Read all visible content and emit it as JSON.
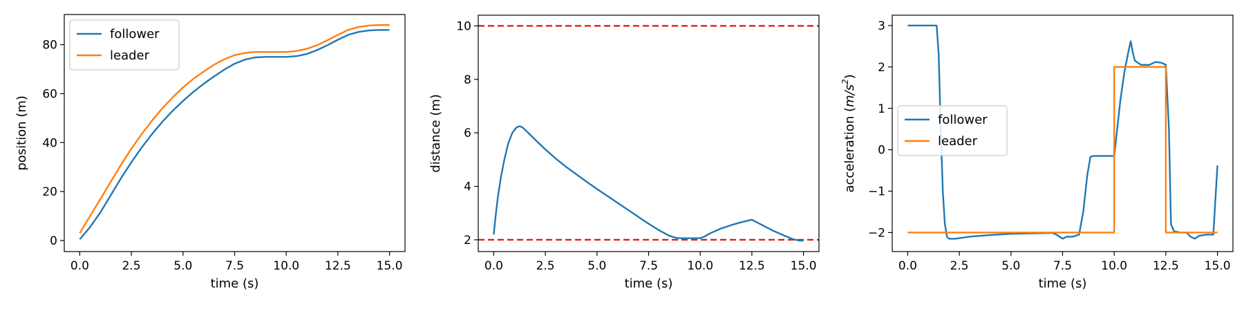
{
  "colors": {
    "follower": "#1f77b4",
    "leader": "#ff7f0e",
    "limit": "#e41a1c"
  },
  "chart_data": [
    {
      "type": "line",
      "xlabel": "time (s)",
      "ylabel": "position (m)",
      "xlim": [
        -0.75,
        15.75
      ],
      "ylim": [
        -4.5,
        92.3
      ],
      "xticks": [
        0,
        2.5,
        5,
        7.5,
        10,
        12.5,
        15
      ],
      "xtick_labels": [
        "0.0",
        "2.5",
        "5.0",
        "7.5",
        "10.0",
        "12.5",
        "15.0"
      ],
      "yticks": [
        0,
        20,
        40,
        60,
        80
      ],
      "ytick_labels": [
        "0",
        "20",
        "40",
        "60",
        "80"
      ],
      "legend": {
        "position": "upper-left"
      },
      "series": [
        {
          "name": "follower",
          "color": "#1f77b4",
          "x": [
            0,
            0.5,
            1,
            1.5,
            2,
            2.5,
            3,
            3.5,
            4,
            4.5,
            5,
            5.5,
            6,
            6.5,
            7,
            7.5,
            8,
            8.5,
            9,
            9.5,
            10,
            10.5,
            11,
            11.5,
            12,
            12.5,
            13,
            13.5,
            14,
            14.5,
            15
          ],
          "y": [
            0.5,
            5.5,
            11.5,
            18.5,
            25.5,
            32,
            38,
            43.5,
            48.5,
            53,
            57,
            60.7,
            64,
            67,
            69.8,
            72.2,
            73.9,
            74.8,
            75,
            75,
            75,
            75.3,
            76.2,
            77.8,
            79.8,
            82,
            84,
            85.2,
            85.8,
            86,
            86
          ]
        },
        {
          "name": "leader",
          "color": "#ff7f0e",
          "x": [
            0,
            0.5,
            1,
            1.5,
            2,
            2.5,
            3,
            3.5,
            4,
            4.5,
            5,
            5.5,
            6,
            6.5,
            7,
            7.5,
            8,
            8.5,
            9,
            9.5,
            10,
            10.5,
            11,
            11.5,
            12,
            12.5,
            13,
            13.5,
            14,
            14.5,
            15
          ],
          "y": [
            3,
            10,
            17,
            24,
            31,
            37.5,
            43.5,
            49,
            54,
            58.5,
            62.5,
            66,
            69,
            71.8,
            74,
            75.7,
            76.6,
            77,
            77,
            77,
            77,
            77.4,
            78.3,
            79.8,
            81.8,
            84,
            86,
            87.2,
            87.8,
            88,
            88
          ]
        }
      ]
    },
    {
      "type": "line",
      "xlabel": "time (s)",
      "ylabel": "distance (m)",
      "xlim": [
        -0.75,
        15.75
      ],
      "ylim": [
        1.56,
        10.4
      ],
      "xticks": [
        0,
        2.5,
        5,
        7.5,
        10,
        12.5,
        15
      ],
      "xtick_labels": [
        "0.0",
        "2.5",
        "5.0",
        "7.5",
        "10.0",
        "12.5",
        "15.0"
      ],
      "yticks": [
        2,
        4,
        6,
        8,
        10
      ],
      "ytick_labels": [
        "2",
        "4",
        "6",
        "8",
        "10"
      ],
      "hlines": [
        {
          "y": 10,
          "color": "#e41a1c",
          "style": "dashed"
        },
        {
          "y": 2,
          "color": "#e41a1c",
          "style": "dashed"
        }
      ],
      "series": [
        {
          "color": "#1f77b4",
          "x": [
            0,
            0.1,
            0.2,
            0.35,
            0.5,
            0.7,
            0.9,
            1.1,
            1.25,
            1.4,
            1.6,
            2,
            2.5,
            3,
            3.5,
            4,
            4.5,
            5,
            5.5,
            6,
            6.5,
            7,
            7.5,
            8,
            8.5,
            8.8,
            9,
            9.5,
            10,
            10.2,
            10.5,
            11,
            11.5,
            12,
            12.5,
            13,
            13.5,
            14,
            14.5,
            14.8,
            15
          ],
          "y": [
            2.2,
            2.95,
            3.6,
            4.35,
            4.95,
            5.6,
            6,
            6.2,
            6.25,
            6.2,
            6.05,
            5.75,
            5.38,
            5.04,
            4.73,
            4.45,
            4.17,
            3.9,
            3.64,
            3.38,
            3.12,
            2.86,
            2.6,
            2.36,
            2.15,
            2.08,
            2.06,
            2.06,
            2.06,
            2.12,
            2.25,
            2.42,
            2.55,
            2.66,
            2.75,
            2.55,
            2.35,
            2.18,
            2.02,
            1.97,
            1.97
          ]
        }
      ]
    },
    {
      "type": "line",
      "xlabel": "time (s)",
      "ylabel": "acceleration (m/s²)",
      "ylabel_parts": [
        "acceleration (",
        "m/s",
        "2",
        ")"
      ],
      "xlim": [
        -0.75,
        15.75
      ],
      "ylim": [
        -2.46,
        3.25
      ],
      "xticks": [
        0,
        2.5,
        5,
        7.5,
        10,
        12.5,
        15
      ],
      "xtick_labels": [
        "0.0",
        "2.5",
        "5.0",
        "7.5",
        "10.0",
        "12.5",
        "15.0"
      ],
      "yticks": [
        -2,
        -1,
        0,
        1,
        2,
        3
      ],
      "ytick_labels": [
        "−2",
        "−1",
        "0",
        "1",
        "2",
        "3"
      ],
      "legend": {
        "position": "center-left"
      },
      "series": [
        {
          "name": "follower",
          "color": "#1f77b4",
          "x": [
            0,
            1.2,
            1.4,
            1.5,
            1.6,
            1.7,
            1.8,
            1.9,
            2,
            2.3,
            3,
            4,
            5,
            6,
            7,
            7.2,
            7.5,
            7.7,
            8,
            8.3,
            8.5,
            8.7,
            8.85,
            9,
            10,
            10.1,
            10.3,
            10.5,
            10.7,
            10.8,
            10.9,
            11,
            11.3,
            11.7,
            12,
            12.3,
            12.5,
            12.65,
            12.75,
            12.9,
            13.2,
            13.5,
            13.7,
            13.9,
            14.1,
            14.5,
            14.8,
            14.9,
            15
          ],
          "y": [
            3,
            3,
            3,
            2.3,
            0.5,
            -1,
            -1.8,
            -2.1,
            -2.15,
            -2.15,
            -2.1,
            -2.06,
            -2.03,
            -2.02,
            -2.01,
            -2.05,
            -2.15,
            -2.1,
            -2.1,
            -2.05,
            -1.5,
            -0.6,
            -0.17,
            -0.15,
            -0.15,
            0.3,
            1.2,
            1.9,
            2.4,
            2.62,
            2.35,
            2.15,
            2.05,
            2.05,
            2.12,
            2.1,
            2.05,
            0.5,
            -1.8,
            -1.97,
            -2,
            -2,
            -2.1,
            -2.15,
            -2.08,
            -2.05,
            -2.05,
            -1.2,
            -0.38
          ]
        },
        {
          "name": "leader",
          "color": "#ff7f0e",
          "x": [
            0,
            10,
            10,
            12.5,
            12.5,
            15
          ],
          "y": [
            -2,
            -2,
            2,
            2,
            -2,
            -2
          ]
        }
      ]
    }
  ]
}
